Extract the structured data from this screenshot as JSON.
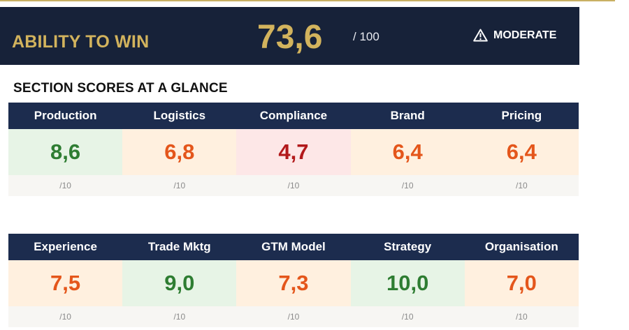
{
  "header": {
    "title": "ABILITY TO WIN",
    "score": "73,6",
    "score_max": "/ 100",
    "status": "MODERATE",
    "status_icon": "warning-triangle-icon"
  },
  "section_title": "SECTION SCORES AT A GLANCE",
  "colors": {
    "header_bg": "#172239",
    "table_header_bg": "#1c2c4e",
    "gold": "#d2b35d",
    "good_text": "#2e7d32",
    "good_bg": "#e7f4e6",
    "moderate_text": "#e4561b",
    "moderate_bg": "#fff0df",
    "weak_text": "#b2191b",
    "weak_bg": "#fde7e7"
  },
  "tables": [
    {
      "sections": [
        {
          "name": "Production",
          "score": "8,6",
          "max": "/10",
          "rating": "green"
        },
        {
          "name": "Logistics",
          "score": "6,8",
          "max": "/10",
          "rating": "orange"
        },
        {
          "name": "Compliance",
          "score": "4,7",
          "max": "/10",
          "rating": "red"
        },
        {
          "name": "Brand",
          "score": "6,4",
          "max": "/10",
          "rating": "orange"
        },
        {
          "name": "Pricing",
          "score": "6,4",
          "max": "/10",
          "rating": "orange"
        }
      ]
    },
    {
      "sections": [
        {
          "name": "Experience",
          "score": "7,5",
          "max": "/10",
          "rating": "orange"
        },
        {
          "name": "Trade Mktg",
          "score": "9,0",
          "max": "/10",
          "rating": "green"
        },
        {
          "name": "GTM Model",
          "score": "7,3",
          "max": "/10",
          "rating": "orange"
        },
        {
          "name": "Strategy",
          "score": "10,0",
          "max": "/10",
          "rating": "green"
        },
        {
          "name": "Organisation",
          "score": "7,0",
          "max": "/10",
          "rating": "orange"
        }
      ]
    }
  ]
}
